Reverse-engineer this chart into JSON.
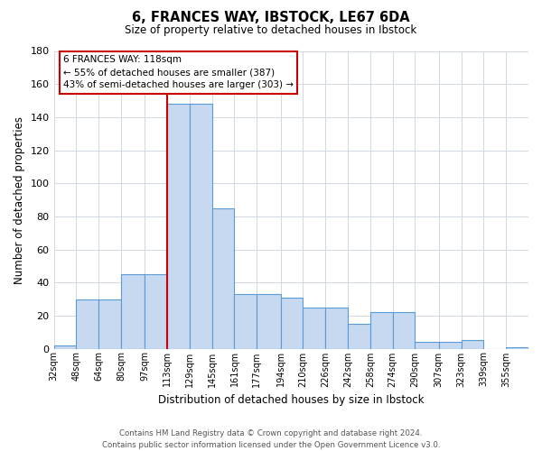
{
  "title": "6, FRANCES WAY, IBSTOCK, LE67 6DA",
  "subtitle": "Size of property relative to detached houses in Ibstock",
  "xlabel": "Distribution of detached houses by size in Ibstock",
  "ylabel": "Number of detached properties",
  "bar_color": "#c6d9f1",
  "bar_edge_color": "#5b9bd5",
  "grid_color": "#d0d8e4",
  "vline_color": "#cc0000",
  "vline_x": 113,
  "categories": [
    "32sqm",
    "48sqm",
    "64sqm",
    "80sqm",
    "97sqm",
    "113sqm",
    "129sqm",
    "145sqm",
    "161sqm",
    "177sqm",
    "194sqm",
    "210sqm",
    "226sqm",
    "242sqm",
    "258sqm",
    "274sqm",
    "290sqm",
    "307sqm",
    "323sqm",
    "339sqm",
    "355sqm"
  ],
  "bin_edges": [
    32,
    48,
    64,
    80,
    97,
    113,
    129,
    145,
    161,
    177,
    194,
    210,
    226,
    242,
    258,
    274,
    290,
    307,
    323,
    339,
    355,
    371
  ],
  "values": [
    2,
    30,
    30,
    45,
    45,
    148,
    148,
    85,
    33,
    33,
    31,
    25,
    25,
    15,
    22,
    22,
    4,
    4,
    5,
    0,
    1
  ],
  "ylim": [
    0,
    180
  ],
  "yticks": [
    0,
    20,
    40,
    60,
    80,
    100,
    120,
    140,
    160,
    180
  ],
  "annotation_title": "6 FRANCES WAY: 118sqm",
  "annotation_line1": "← 55% of detached houses are smaller (387)",
  "annotation_line2": "43% of semi-detached houses are larger (303) →",
  "footer_line1": "Contains HM Land Registry data © Crown copyright and database right 2024.",
  "footer_line2": "Contains public sector information licensed under the Open Government Licence v3.0.",
  "background_color": "#ffffff"
}
